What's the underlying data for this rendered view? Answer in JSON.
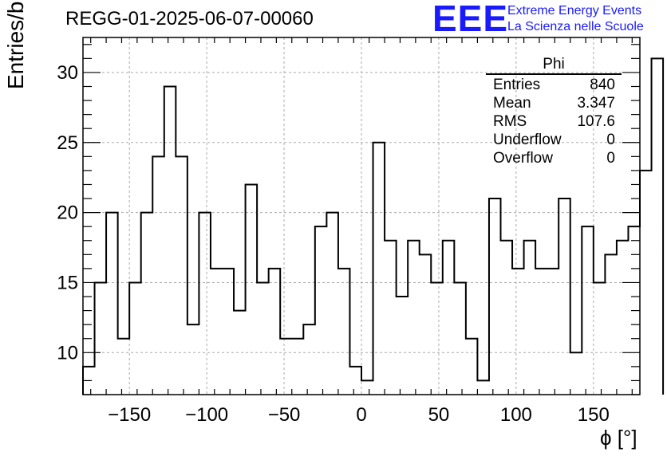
{
  "title": "REGG-01-2025-06-07-00060",
  "logo": {
    "mark": "EEE",
    "line1": "Extreme Energy Events",
    "line2": "La Scienza nelle Scuole",
    "color": "#1a1aff"
  },
  "stats": {
    "name": "Phi",
    "rows": [
      {
        "label": "Entries",
        "value": "840"
      },
      {
        "label": "Mean",
        "value": "3.347"
      },
      {
        "label": "RMS",
        "value": "107.6"
      },
      {
        "label": "Underflow",
        "value": "0"
      },
      {
        "label": "Overflow",
        "value": "0"
      }
    ]
  },
  "chart_data": {
    "type": "histogram",
    "title": "REGG-01-2025-06-07-00060",
    "xlabel": "ϕ [°]",
    "ylabel": "Entries/bin",
    "xlim": [
      -180,
      180
    ],
    "ylim": [
      7,
      32.5
    ],
    "bin_width": 7.5,
    "bin_edges_start": -180,
    "values": [
      9,
      15,
      20,
      11,
      15,
      20,
      24,
      29,
      24,
      12,
      20,
      16,
      16,
      13,
      22,
      15,
      16,
      11,
      11,
      12,
      19,
      20,
      16,
      9,
      8,
      25,
      18,
      14,
      18,
      17,
      15,
      18,
      15,
      11,
      8,
      21,
      18,
      16,
      18,
      16,
      16,
      21,
      10,
      19,
      15,
      17,
      18,
      19,
      23,
      31
    ],
    "xticks": [
      -150,
      -100,
      -50,
      0,
      50,
      100,
      150
    ],
    "xtick_labels": [
      "−150",
      "−100",
      "−50",
      "0",
      "50",
      "100",
      "150"
    ],
    "yticks": [
      10,
      15,
      20,
      25,
      30
    ],
    "ytick_labels": [
      "10",
      "15",
      "20",
      "25",
      "30"
    ],
    "grid": true
  }
}
